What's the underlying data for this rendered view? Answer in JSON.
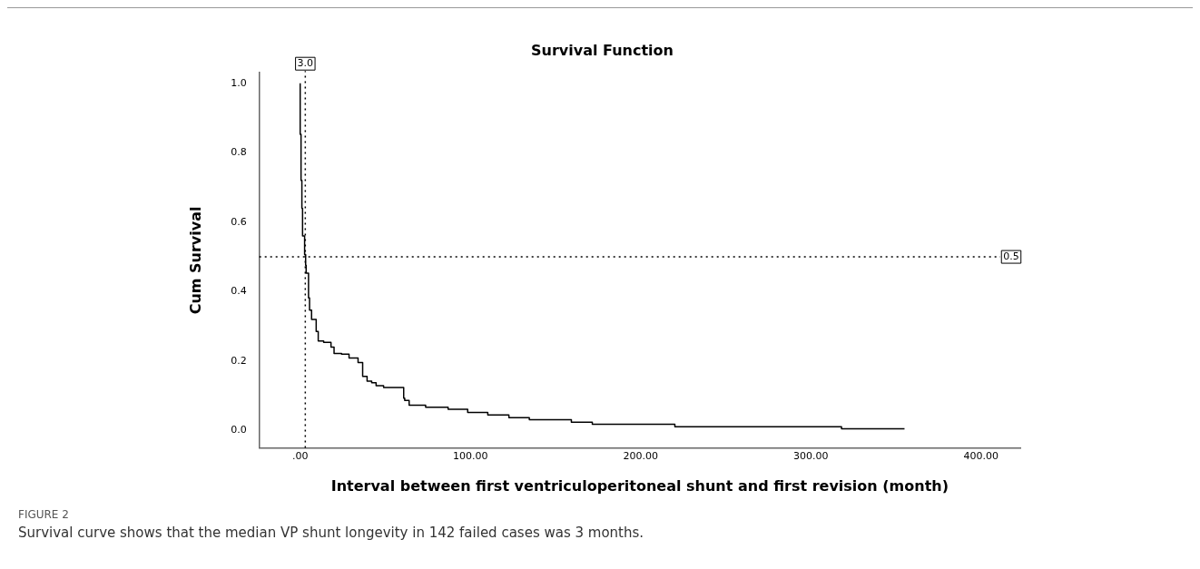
{
  "chart_data": {
    "type": "step",
    "title": "Survival Function",
    "xlabel": "Interval between first ventriculoperitoneal shunt and first revision (month)",
    "ylabel": "Cum Survival",
    "x": [
      0,
      0.5,
      1,
      1.4,
      2.6,
      3.2,
      3.5,
      4.9,
      5.5,
      6.7,
      9.4,
      10.6,
      13.8,
      18.1,
      19.9,
      24.3,
      28.7,
      34,
      36.7,
      39.3,
      42,
      44.6,
      49,
      60.8,
      61.4,
      64,
      73.7,
      86.9,
      98.4,
      110.2,
      122.6,
      134.6,
      159.3,
      171.6,
      220.1,
      318,
      355
    ],
    "series": [
      {
        "color": "#000000",
        "values": [
          1.0,
          0.853,
          0.72,
          0.64,
          0.56,
          0.507,
          0.476,
          0.453,
          0.382,
          0.347,
          0.32,
          0.285,
          0.258,
          0.254,
          0.24,
          0.222,
          0.22,
          0.209,
          0.196,
          0.156,
          0.142,
          0.138,
          0.129,
          0.124,
          0.093,
          0.087,
          0.073,
          0.067,
          0.061,
          0.052,
          0.045,
          0.037,
          0.031,
          0.024,
          0.018,
          0.011,
          0.005
        ]
      }
    ],
    "xlim": [
      -24,
      423
    ],
    "ylim": [
      -0.05,
      1.03
    ],
    "xticks": [
      {
        "value": 0,
        "label": ".00"
      },
      {
        "value": 100,
        "label": "100.00"
      },
      {
        "value": 200,
        "label": "200.00"
      },
      {
        "value": 300,
        "label": "300.00"
      },
      {
        "value": 400,
        "label": "400.00"
      }
    ],
    "yticks": [
      {
        "value": 0,
        "label": "0.0"
      },
      {
        "value": 0.2,
        "label": "0.2"
      },
      {
        "value": 0.4,
        "label": "0.4"
      },
      {
        "value": 0.6,
        "label": "0.6"
      },
      {
        "value": 0.8,
        "label": "0.8"
      },
      {
        "value": 1,
        "label": "1.0"
      }
    ],
    "ref_lines": [
      {
        "axis": "x",
        "value": 3,
        "label": "3.0",
        "line_style": "dotted",
        "color": "#000000"
      },
      {
        "axis": "y",
        "value": 0.5,
        "label": "0.5",
        "line_style": "dotted",
        "color": "#000000"
      }
    ],
    "grid": false,
    "legend": false,
    "marker": "none",
    "line_style": "solid",
    "annotations": [
      "FIGURE 2",
      "Survival curve shows that the median VP shunt longevity in 142 failed cases was 3 months."
    ]
  }
}
